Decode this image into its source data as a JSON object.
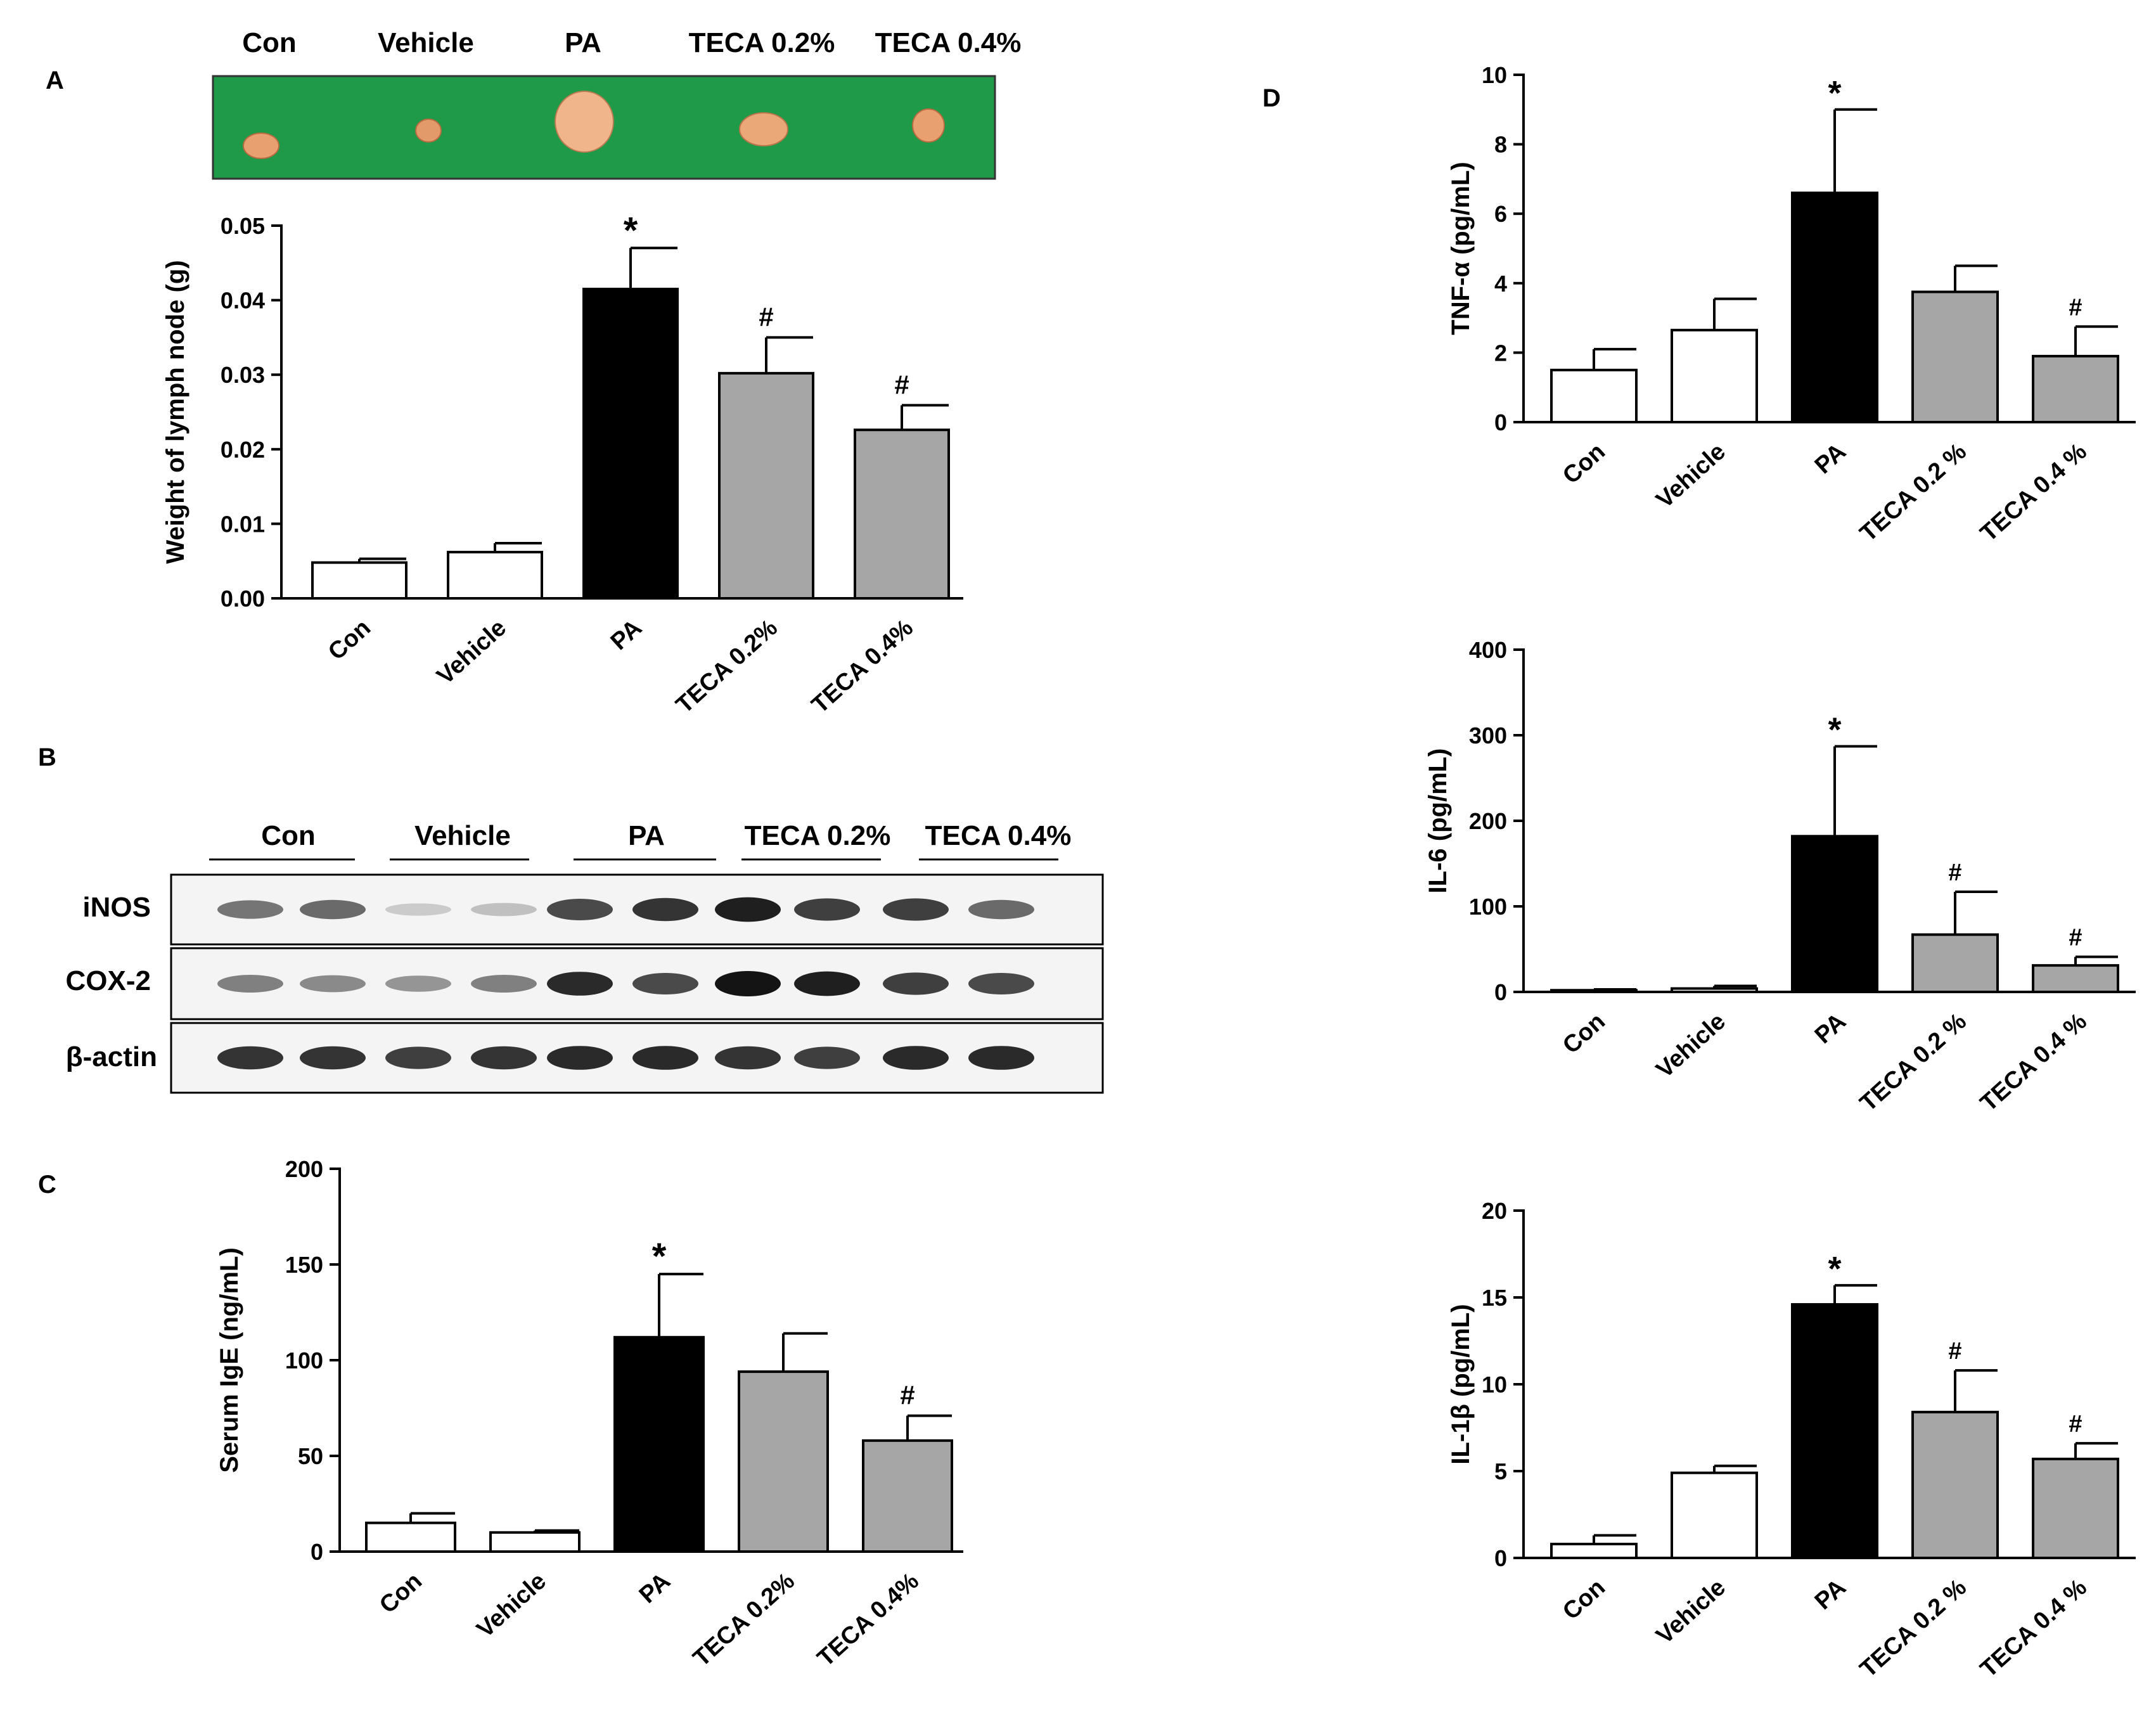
{
  "panels": {
    "a": {
      "letter": "A"
    },
    "b": {
      "letter": "B"
    },
    "c": {
      "letter": "C"
    },
    "d": {
      "letter": "D"
    }
  },
  "photo": {
    "labels": [
      "Con",
      "Vehicle",
      "PA",
      "TECA 0.2%",
      "TECA 0.4%"
    ],
    "background_color": "#1f9a48"
  },
  "western_blot": {
    "group_labels": [
      "Con",
      "Vehicle",
      "PA",
      "TECA 0.2%",
      "TECA 0.4%"
    ],
    "proteins": [
      {
        "name": "iNOS",
        "intensities": [
          0.55,
          0.6,
          0.15,
          0.2,
          0.75,
          0.85,
          0.95,
          0.8,
          0.8,
          0.6
        ]
      },
      {
        "name": "COX-2",
        "intensities": [
          0.5,
          0.45,
          0.4,
          0.5,
          0.9,
          0.75,
          1.0,
          0.95,
          0.8,
          0.75
        ]
      },
      {
        "name": "β-actin",
        "intensities": [
          0.85,
          0.85,
          0.8,
          0.85,
          0.9,
          0.9,
          0.85,
          0.8,
          0.9,
          0.9
        ]
      }
    ]
  },
  "colors": {
    "con": "#ffffff",
    "vehicle": "#ffffff",
    "pa": "#000000",
    "teca": "#a6a6a6"
  },
  "chart_data": [
    {
      "id": "lymph",
      "type": "bar",
      "title": "",
      "ylabel": "Weight of lymph node (g)",
      "xlabel": "",
      "categories": [
        "Con",
        "Vehicle",
        "PA",
        "TECA 0.2%",
        "TECA 0.4%"
      ],
      "values": [
        0.0048,
        0.0062,
        0.0415,
        0.0302,
        0.0226
      ],
      "errors": [
        0.0005,
        0.0012,
        0.0055,
        0.0048,
        0.0033
      ],
      "annotations": [
        "",
        "",
        "*",
        "#",
        "#"
      ],
      "ylim": [
        0,
        0.05
      ],
      "ticks": [
        "0.00",
        "0.01",
        "0.02",
        "0.03",
        "0.04",
        "0.05"
      ]
    },
    {
      "id": "ige",
      "type": "bar",
      "title": "",
      "ylabel": "Serum IgE (ng/mL)",
      "xlabel": "",
      "categories": [
        "Con",
        "Vehicle",
        "PA",
        "TECA 0.2%",
        "TECA 0.4%"
      ],
      "values": [
        15,
        10,
        112,
        94,
        58
      ],
      "errors": [
        5,
        1,
        33,
        20,
        13
      ],
      "annotations": [
        "",
        "",
        "*",
        "",
        "#"
      ],
      "ylim": [
        0,
        200
      ],
      "ticks": [
        "0",
        "50",
        "100",
        "150",
        "200"
      ]
    },
    {
      "id": "tnf",
      "type": "bar",
      "title": "",
      "ylabel": "TNF-α (pg/mL)",
      "xlabel": "",
      "categories": [
        "Con",
        "Vehicle",
        "PA",
        "TECA 0.2 %",
        "TECA 0.4 %"
      ],
      "values": [
        1.5,
        2.65,
        6.6,
        3.75,
        1.9
      ],
      "errors": [
        0.6,
        0.9,
        2.4,
        0.75,
        0.85
      ],
      "annotations": [
        "",
        "",
        "*",
        "",
        "#"
      ],
      "ylim": [
        0,
        10
      ],
      "ticks": [
        "0",
        "2",
        "4",
        "6",
        "8",
        "10"
      ]
    },
    {
      "id": "il6",
      "type": "bar",
      "title": "",
      "ylabel": "IL-6 (pg/mL)",
      "xlabel": "",
      "categories": [
        "Con",
        "Vehicle",
        "PA",
        "TECA 0.2 %",
        "TECA 0.4 %"
      ],
      "values": [
        2,
        4,
        182,
        67,
        31
      ],
      "errors": [
        1,
        3,
        105,
        50,
        10
      ],
      "annotations": [
        "",
        "",
        "*",
        "#",
        "#"
      ],
      "ylim": [
        0,
        400
      ],
      "ticks": [
        "0",
        "100",
        "200",
        "300",
        "400"
      ]
    },
    {
      "id": "il1b",
      "type": "bar",
      "title": "",
      "ylabel": "IL-1β (pg/mL)",
      "xlabel": "",
      "categories": [
        "Con",
        "Vehicle",
        "PA",
        "TECA 0.2 %",
        "TECA 0.4 %"
      ],
      "values": [
        0.8,
        4.9,
        14.6,
        8.4,
        5.7
      ],
      "errors": [
        0.5,
        0.4,
        1.1,
        2.4,
        0.9
      ],
      "annotations": [
        "",
        "",
        "*",
        "#",
        "#"
      ],
      "ylim": [
        0,
        20
      ],
      "ticks": [
        "0",
        "5",
        "10",
        "15",
        "20"
      ]
    }
  ]
}
